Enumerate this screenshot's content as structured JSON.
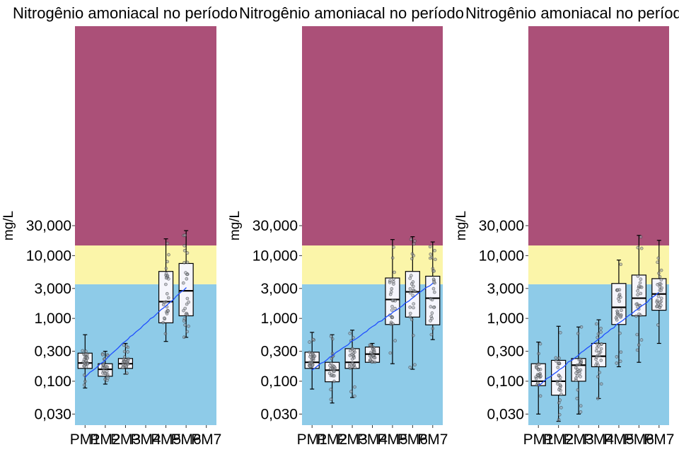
{
  "colors": {
    "band_high": "#ab5078",
    "band_mid": "#fbf5a9",
    "band_low": "#8ecbe8",
    "box_fill": "#f5f5fc",
    "trend_line": "#1f4fff"
  },
  "chart_data": [
    {
      "type": "box",
      "title": "Nitrogênio amoniacal no período",
      "ylabel": "mg/L",
      "yscale": "log",
      "ylim": [
        0.02,
        45000
      ],
      "y_ticks": [
        {
          "value": 0.03,
          "label": "0,030"
        },
        {
          "value": 0.1,
          "label": "0,100"
        },
        {
          "value": 0.3,
          "label": "0,300"
        },
        {
          "value": 1,
          "label": "1,000"
        },
        {
          "value": 3,
          "label": "3,000"
        },
        {
          "value": 10,
          "label": "10,000"
        },
        {
          "value": 30,
          "label": "30,000"
        }
      ],
      "categories": [
        "PM1",
        "PM2",
        "PM3",
        "PM4",
        "PM5",
        "PM6",
        "PM7"
      ],
      "bands": [
        {
          "from": 0.02,
          "to": 3.5,
          "color": "#8ecbe8"
        },
        {
          "from": 3.5,
          "to": 14.5,
          "color": "#fbf5a9"
        },
        {
          "from": 14.5,
          "to": 45000,
          "color": "#ab5078"
        }
      ],
      "boxes": [
        {
          "category": "PM1",
          "min": 0.078,
          "q1": 0.16,
          "median": 0.195,
          "q3": 0.28,
          "max": 0.55
        },
        {
          "category": "PM2",
          "min": 0.09,
          "q1": 0.12,
          "median": 0.155,
          "q3": 0.19,
          "max": 0.3
        },
        {
          "category": "PM3",
          "min": 0.13,
          "q1": 0.16,
          "median": 0.19,
          "q3": 0.23,
          "max": 0.4
        },
        {
          "category": "PM5",
          "min": 0.43,
          "q1": 0.85,
          "median": 1.85,
          "q3": 5.6,
          "max": 18.5
        },
        {
          "category": "PM6",
          "min": 0.5,
          "q1": 1.1,
          "median": 2.75,
          "q3": 7.5,
          "max": 25.0
        }
      ],
      "trend": {
        "from": {
          "x": 1,
          "y": 0.115
        },
        "to": {
          "x": 6,
          "y": 3.1
        }
      }
    },
    {
      "type": "box",
      "title": "Nitrogênio amoniacal no período",
      "ylabel": "mg/L",
      "yscale": "log",
      "ylim": [
        0.02,
        45000
      ],
      "y_ticks": [
        {
          "value": 0.03,
          "label": "0,030"
        },
        {
          "value": 0.1,
          "label": "0,100"
        },
        {
          "value": 0.3,
          "label": "0,300"
        },
        {
          "value": 1,
          "label": "1,000"
        },
        {
          "value": 3,
          "label": "3,000"
        },
        {
          "value": 10,
          "label": "10,000"
        },
        {
          "value": 30,
          "label": "30,000"
        }
      ],
      "categories": [
        "PM1",
        "PM2",
        "PM3",
        "PM4",
        "PM5",
        "PM6",
        "PM7"
      ],
      "bands": [
        {
          "from": 0.02,
          "to": 3.5,
          "color": "#8ecbe8"
        },
        {
          "from": 3.5,
          "to": 14.5,
          "color": "#fbf5a9"
        },
        {
          "from": 14.5,
          "to": 45000,
          "color": "#ab5078"
        }
      ],
      "boxes": [
        {
          "category": "PM1",
          "min": 0.075,
          "q1": 0.16,
          "median": 0.2,
          "q3": 0.29,
          "max": 0.6
        },
        {
          "category": "PM2",
          "min": 0.045,
          "q1": 0.098,
          "median": 0.15,
          "q3": 0.2,
          "max": 0.55
        },
        {
          "category": "PM3",
          "min": 0.055,
          "q1": 0.16,
          "median": 0.2,
          "q3": 0.33,
          "max": 0.65
        },
        {
          "category": "PM4",
          "min": 0.2,
          "q1": 0.2,
          "median": 0.27,
          "q3": 0.35,
          "max": 0.4
        },
        {
          "category": "PM5",
          "min": 0.19,
          "q1": 0.8,
          "median": 2.0,
          "q3": 4.4,
          "max": 18.0
        },
        {
          "category": "PM6",
          "min": 0.155,
          "q1": 1.05,
          "median": 2.65,
          "q3": 5.6,
          "max": 20.0
        },
        {
          "category": "PM7",
          "min": 0.46,
          "q1": 0.79,
          "median": 2.1,
          "q3": 4.7,
          "max": 16.5
        }
      ],
      "trend": {
        "from": {
          "x": 1,
          "y": 0.15
        },
        "to": {
          "x": 7,
          "y": 3.6
        }
      }
    },
    {
      "type": "box",
      "title": "Nitrogênio amoniacal no período",
      "ylabel": "mg/L",
      "yscale": "log",
      "ylim": [
        0.02,
        45000
      ],
      "y_ticks": [
        {
          "value": 0.03,
          "label": "0,030"
        },
        {
          "value": 0.1,
          "label": "0,100"
        },
        {
          "value": 0.3,
          "label": "0,300"
        },
        {
          "value": 1,
          "label": "1,000"
        },
        {
          "value": 3,
          "label": "3,000"
        },
        {
          "value": 10,
          "label": "10,000"
        },
        {
          "value": 30,
          "label": "30,000"
        }
      ],
      "categories": [
        "PM1",
        "PM2",
        "PM3",
        "PM4",
        "PM5",
        "PM6",
        "PM7"
      ],
      "bands": [
        {
          "from": 0.02,
          "to": 3.5,
          "color": "#8ecbe8"
        },
        {
          "from": 3.5,
          "to": 14.5,
          "color": "#fbf5a9"
        },
        {
          "from": 14.5,
          "to": 45000,
          "color": "#ab5078"
        }
      ],
      "boxes": [
        {
          "category": "PM1",
          "min": 0.03,
          "q1": 0.085,
          "median": 0.1,
          "q3": 0.19,
          "max": 0.42
        },
        {
          "category": "PM2",
          "min": 0.023,
          "q1": 0.06,
          "median": 0.1,
          "q3": 0.215,
          "max": 0.75
        },
        {
          "category": "PM3",
          "min": 0.03,
          "q1": 0.1,
          "median": 0.18,
          "q3": 0.23,
          "max": 0.73
        },
        {
          "category": "PM4",
          "min": 0.053,
          "q1": 0.17,
          "median": 0.25,
          "q3": 0.4,
          "max": 0.95
        },
        {
          "category": "PM5",
          "min": 0.17,
          "q1": 0.8,
          "median": 1.5,
          "q3": 3.6,
          "max": 8.5
        },
        {
          "category": "PM6",
          "min": 0.2,
          "q1": 1.1,
          "median": 2.1,
          "q3": 4.9,
          "max": 21.0
        },
        {
          "category": "PM7",
          "min": 0.4,
          "q1": 1.35,
          "median": 2.45,
          "q3": 4.3,
          "max": 17.5
        }
      ],
      "trend": {
        "from": {
          "x": 1,
          "y": 0.085
        },
        "to": {
          "x": 7,
          "y": 2.6
        }
      }
    }
  ]
}
